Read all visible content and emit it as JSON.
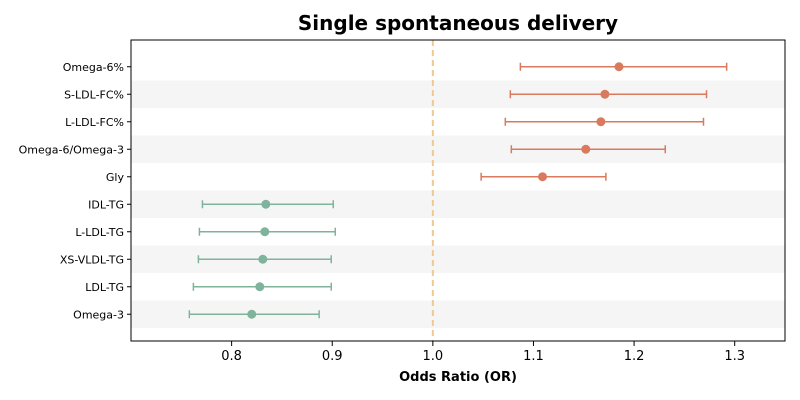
{
  "chart_data": {
    "type": "forest",
    "title": "Single spontaneous delivery",
    "xlabel": "Odds Ratio (OR)",
    "xlim": [
      0.7,
      1.35
    ],
    "xticks": [
      0.8,
      0.9,
      1.0,
      1.1,
      1.2,
      1.3
    ],
    "xtick_labels": [
      "0.8",
      "0.9",
      "1.0",
      "1.1",
      "1.2",
      "1.3"
    ],
    "reference_line": 1.0,
    "grid": false,
    "row_banding": true,
    "colors": {
      "risk": "#d9795e",
      "protective": "#7fb39b",
      "reference": "#f0c890",
      "band": "#f5f5f5"
    },
    "rows": [
      {
        "label": "Omega-6%",
        "or": 1.185,
        "lo": 1.087,
        "hi": 1.292,
        "group": "risk"
      },
      {
        "label": "S-LDL-FC%",
        "or": 1.171,
        "lo": 1.077,
        "hi": 1.272,
        "group": "risk"
      },
      {
        "label": "L-LDL-FC%",
        "or": 1.167,
        "lo": 1.072,
        "hi": 1.269,
        "group": "risk"
      },
      {
        "label": "Omega-6/Omega-3",
        "or": 1.152,
        "lo": 1.078,
        "hi": 1.231,
        "group": "risk"
      },
      {
        "label": "Gly",
        "or": 1.109,
        "lo": 1.048,
        "hi": 1.172,
        "group": "risk"
      },
      {
        "label": "IDL-TG",
        "or": 0.834,
        "lo": 0.771,
        "hi": 0.901,
        "group": "protective"
      },
      {
        "label": "L-LDL-TG",
        "or": 0.833,
        "lo": 0.768,
        "hi": 0.903,
        "group": "protective"
      },
      {
        "label": "XS-VLDL-TG",
        "or": 0.831,
        "lo": 0.767,
        "hi": 0.899,
        "group": "protective"
      },
      {
        "label": "LDL-TG",
        "or": 0.828,
        "lo": 0.762,
        "hi": 0.899,
        "group": "protective"
      },
      {
        "label": "Omega-3",
        "or": 0.82,
        "lo": 0.758,
        "hi": 0.887,
        "group": "protective"
      }
    ]
  }
}
